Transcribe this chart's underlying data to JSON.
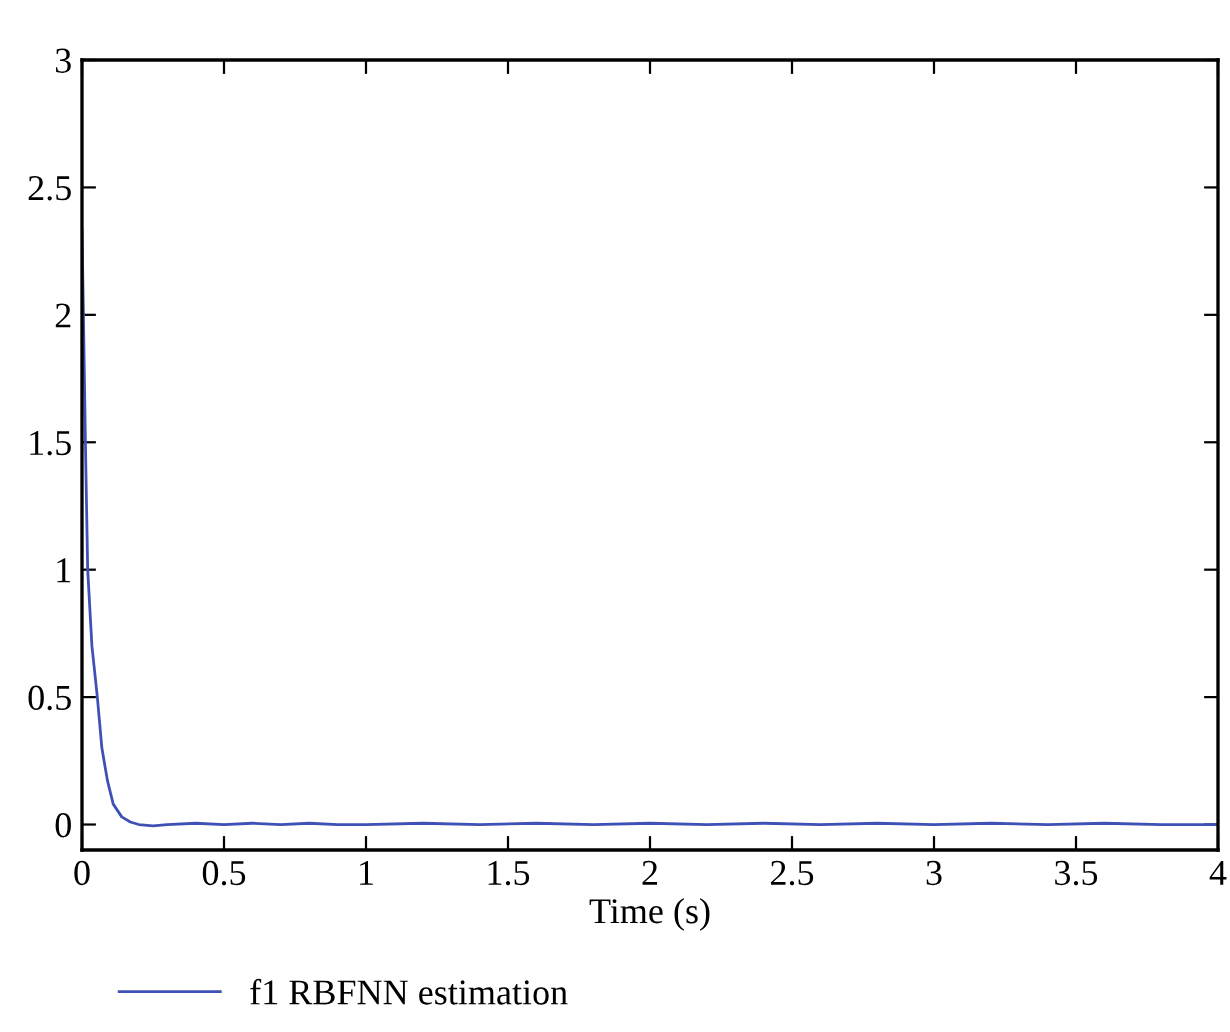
{
  "chart_data": {
    "type": "line",
    "xlabel": "Time (s)",
    "series": [
      {
        "name": "f1 RBFNN estimation",
        "color": "#3f51b5",
        "x": [
          0,
          0.005,
          0.012,
          0.02,
          0.035,
          0.054,
          0.07,
          0.09,
          0.11,
          0.14,
          0.17,
          0.2,
          0.25,
          0.3,
          0.4,
          0.5,
          0.6,
          0.7,
          0.8,
          0.9,
          1.0,
          1.2,
          1.4,
          1.6,
          1.8,
          2.0,
          2.2,
          2.4,
          2.6,
          2.8,
          3.0,
          3.2,
          3.4,
          3.6,
          3.8,
          4.0
        ],
        "values": [
          2.33,
          2.0,
          1.5,
          1.0,
          0.7,
          0.5,
          0.3,
          0.17,
          0.08,
          0.03,
          0.01,
          0.0,
          -0.005,
          0.0,
          0.005,
          0.0,
          0.005,
          0.0,
          0.005,
          0.0,
          0.0,
          0.005,
          0.0,
          0.005,
          0.0,
          0.005,
          0.0,
          0.005,
          0.0,
          0.005,
          0.0,
          0.005,
          0.0,
          0.005,
          0.0,
          0.0
        ]
      }
    ],
    "xlim": [
      0,
      4
    ],
    "xticks": [
      0,
      0.5,
      1,
      1.5,
      2,
      2.5,
      3,
      3.5,
      4
    ],
    "ylim": [
      -0.1,
      3
    ],
    "yticks": [
      0,
      0.5,
      1,
      1.5,
      2,
      2.5,
      3
    ],
    "grid": false,
    "legend": "bottom left",
    "line_style": "solid",
    "marker": "none"
  }
}
